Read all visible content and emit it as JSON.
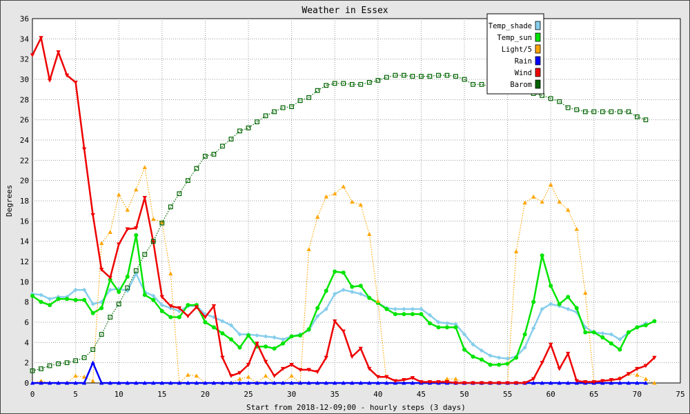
{
  "chart_data": {
    "type": "line",
    "title": "Weather in Essex",
    "xlabel": "Start from 2018-12-09;00 - hourly steps (3 days)",
    "ylabel": "Degrees",
    "xlim": [
      0,
      75
    ],
    "ylim": [
      0,
      36
    ],
    "xticks": [
      0,
      5,
      10,
      15,
      20,
      25,
      30,
      35,
      40,
      45,
      50,
      55,
      60,
      65,
      70,
      75
    ],
    "yticks": [
      0,
      2,
      4,
      6,
      8,
      10,
      12,
      14,
      16,
      18,
      20,
      22,
      24,
      26,
      28,
      30,
      32,
      34,
      36
    ],
    "grid": true,
    "legend_position": "top-right",
    "series": [
      {
        "name": "Temp_shade",
        "color": "#87ceeb",
        "marker": "diamond",
        "style": "solid",
        "values": [
          8.8,
          8.7,
          8.3,
          8.5,
          8.5,
          9.2,
          9.2,
          7.8,
          8.0,
          9.2,
          9.3,
          9.1,
          10.8,
          9.0,
          8.6,
          7.7,
          7.4,
          7.1,
          7.6,
          7.6,
          6.8,
          6.5,
          6.1,
          5.7,
          4.8,
          4.8,
          4.7,
          4.6,
          4.5,
          4.3,
          4.6,
          4.8,
          5.2,
          6.6,
          7.3,
          8.8,
          9.2,
          9.0,
          8.8,
          8.4,
          7.9,
          7.4,
          7.3,
          7.3,
          7.3,
          7.3,
          6.7,
          6.0,
          5.9,
          5.8,
          4.8,
          3.8,
          3.2,
          2.7,
          2.5,
          2.4,
          2.6,
          3.5,
          5.4,
          7.3,
          7.8,
          7.6,
          7.3,
          7.0,
          5.5,
          5.0,
          4.9,
          4.8,
          4.3,
          5.0,
          5.5,
          5.9
        ]
      },
      {
        "name": "Temp_sun",
        "color": "#00e400",
        "marker": "circle",
        "style": "solid",
        "values": [
          8.6,
          8.0,
          7.7,
          8.3,
          8.3,
          8.2,
          8.2,
          6.9,
          7.4,
          10.2,
          9.0,
          10.5,
          14.6,
          8.7,
          8.2,
          7.1,
          6.5,
          6.5,
          7.7,
          7.7,
          6.0,
          5.5,
          4.9,
          4.3,
          3.5,
          4.7,
          3.6,
          3.6,
          3.4,
          3.9,
          4.6,
          4.7,
          5.3,
          7.4,
          9.1,
          11.0,
          10.9,
          9.5,
          9.6,
          8.4,
          7.9,
          7.3,
          6.8,
          6.8,
          6.8,
          6.8,
          5.9,
          5.5,
          5.5,
          5.5,
          3.3,
          2.6,
          2.3,
          1.8,
          1.8,
          1.9,
          2.5,
          4.8,
          8.0,
          12.6,
          9.6,
          7.8,
          8.5,
          7.4,
          5.0,
          5.0,
          4.5,
          3.9,
          3.3,
          5.0,
          5.5,
          5.7,
          6.1
        ]
      },
      {
        "name": "Light/5",
        "color": "#ffa500",
        "marker": "triangle-up",
        "style": "dotted",
        "values": [
          0,
          0.2,
          0,
          0,
          0,
          0.7,
          0.6,
          0.2,
          13.8,
          14.9,
          18.6,
          17.1,
          19.1,
          21.3,
          16.2,
          15.9,
          10.8,
          0,
          0.8,
          0.7,
          0,
          0,
          0,
          0,
          0.4,
          0.6,
          0,
          0.7,
          0,
          0,
          0.7,
          0,
          13.2,
          16.4,
          18.4,
          18.7,
          19.4,
          17.9,
          17.6,
          14.7,
          8.1,
          0,
          0,
          0,
          0,
          0,
          0,
          0,
          0.4,
          0.4,
          0,
          0,
          0,
          0,
          0,
          0,
          13.0,
          17.8,
          18.4,
          17.9,
          19.6,
          17.9,
          17.1,
          15.2,
          8.9,
          0,
          0,
          0.1,
          0.5,
          0.9,
          0.8,
          0.4,
          0
        ]
      },
      {
        "name": "Rain",
        "color": "#0000ff",
        "marker": "triangle-up",
        "style": "solid",
        "values": [
          0,
          0,
          0,
          0,
          0,
          0,
          0,
          2.0,
          0,
          0,
          0,
          0,
          0,
          0,
          0,
          0,
          0,
          0,
          0,
          0,
          0,
          0,
          0,
          0,
          0,
          0,
          0,
          0,
          0,
          0,
          0,
          0,
          0,
          0,
          0,
          0,
          0,
          0,
          0,
          0,
          0,
          0,
          0,
          0,
          0,
          0,
          0,
          0,
          0,
          0,
          0,
          0,
          0,
          0,
          0,
          0,
          0,
          0,
          0,
          0,
          0,
          0,
          0,
          0,
          0,
          0,
          0,
          0,
          0,
          0,
          0,
          0
        ]
      },
      {
        "name": "Wind",
        "color": "#ee0000",
        "marker": "triangle-down",
        "style": "solid",
        "values": [
          32.4,
          34.1,
          29.9,
          32.7,
          30.4,
          29.7,
          23.1,
          16.6,
          11.2,
          10.4,
          13.7,
          15.2,
          15.3,
          18.3,
          13.9,
          8.5,
          7.6,
          7.4,
          6.6,
          7.5,
          6.5,
          7.6,
          2.5,
          0.7,
          1.0,
          1.8,
          3.9,
          2.1,
          0.7,
          1.4,
          1.8,
          1.3,
          1.3,
          1.1,
          2.5,
          6.1,
          5.1,
          2.6,
          3.4,
          1.4,
          0.6,
          0.6,
          0.2,
          0.3,
          0.5,
          0.1,
          0.1,
          0.1,
          0.1,
          0,
          0,
          0,
          0,
          0,
          0,
          0,
          0,
          0,
          0.4,
          2.0,
          3.8,
          1.4,
          2.9,
          0.2,
          0.1,
          0.1,
          0.2,
          0.3,
          0.4,
          0.9,
          1.4,
          1.7,
          2.5
        ]
      },
      {
        "name": "Barom",
        "color": "#006400",
        "marker": "square",
        "style": "dotted",
        "values": [
          1.2,
          1.4,
          1.7,
          1.9,
          2.0,
          2.2,
          2.5,
          3.3,
          4.8,
          6.5,
          7.8,
          9.4,
          11.1,
          12.7,
          14.0,
          15.8,
          17.4,
          18.7,
          20.0,
          21.2,
          22.4,
          22.6,
          23.4,
          24.1,
          24.9,
          25.2,
          25.8,
          26.4,
          26.8,
          27.2,
          27.3,
          27.9,
          28.2,
          28.9,
          29.4,
          29.6,
          29.6,
          29.5,
          29.5,
          29.7,
          29.9,
          30.2,
          30.4,
          30.4,
          30.3,
          30.3,
          30.3,
          30.4,
          30.4,
          30.3,
          30.0,
          29.5,
          29.5,
          29.3,
          29.0,
          28.9,
          28.9,
          28.9,
          28.6,
          28.4,
          28.1,
          27.8,
          27.2,
          27.0,
          26.8,
          26.8,
          26.8,
          26.8,
          26.8,
          26.8,
          26.3,
          26.0
        ]
      }
    ]
  }
}
